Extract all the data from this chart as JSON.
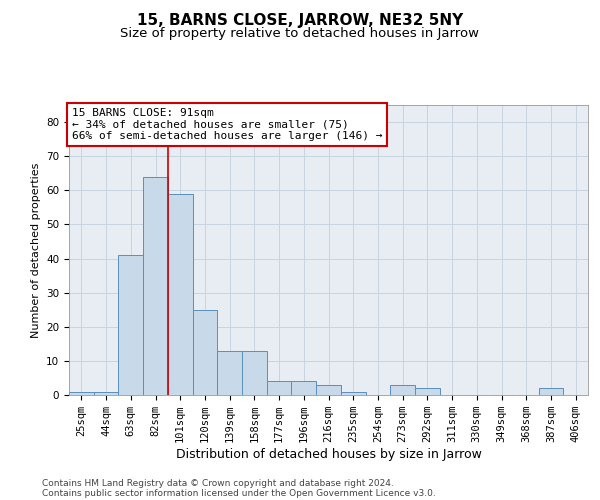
{
  "title": "15, BARNS CLOSE, JARROW, NE32 5NY",
  "subtitle": "Size of property relative to detached houses in Jarrow",
  "xlabel": "Distribution of detached houses by size in Jarrow",
  "ylabel": "Number of detached properties",
  "categories": [
    "25sqm",
    "44sqm",
    "63sqm",
    "82sqm",
    "101sqm",
    "120sqm",
    "139sqm",
    "158sqm",
    "177sqm",
    "196sqm",
    "216sqm",
    "235sqm",
    "254sqm",
    "273sqm",
    "292sqm",
    "311sqm",
    "330sqm",
    "349sqm",
    "368sqm",
    "387sqm",
    "406sqm"
  ],
  "values": [
    1,
    1,
    41,
    64,
    59,
    25,
    13,
    13,
    4,
    4,
    3,
    1,
    0,
    3,
    2,
    0,
    0,
    0,
    0,
    2,
    0
  ],
  "bar_color": "#c8d9ea",
  "bar_edge_color": "#5a8fbb",
  "vline_index": 3,
  "vline_color": "#cc0000",
  "annotation_text": "15 BARNS CLOSE: 91sqm\n← 34% of detached houses are smaller (75)\n66% of semi-detached houses are larger (146) →",
  "annotation_box_color": "#ffffff",
  "annotation_box_edge_color": "#cc0000",
  "ylim": [
    0,
    85
  ],
  "yticks": [
    0,
    10,
    20,
    30,
    40,
    50,
    60,
    70,
    80
  ],
  "grid_color": "#c8d4e0",
  "background_color": "#e8edf4",
  "footer_line1": "Contains HM Land Registry data © Crown copyright and database right 2024.",
  "footer_line2": "Contains public sector information licensed under the Open Government Licence v3.0.",
  "title_fontsize": 11,
  "subtitle_fontsize": 9.5,
  "xlabel_fontsize": 9,
  "ylabel_fontsize": 8,
  "tick_fontsize": 7.5,
  "annotation_fontsize": 8,
  "footer_fontsize": 6.5
}
